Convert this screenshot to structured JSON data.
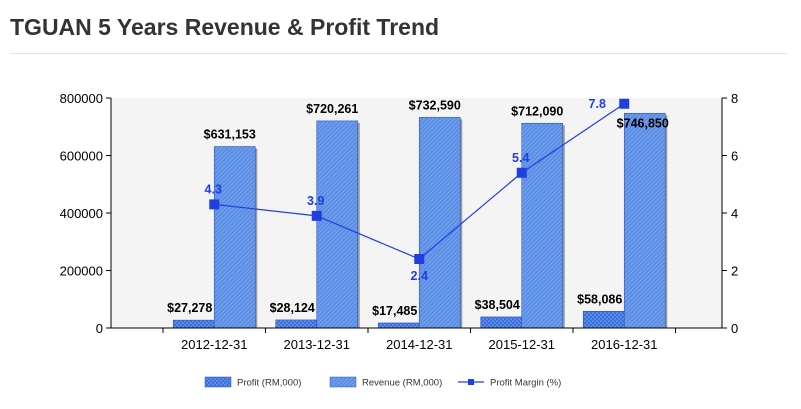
{
  "page": {
    "title": "TGUAN 5 Years Revenue & Profit Trend"
  },
  "chart_data": {
    "type": "bar",
    "categories": [
      "2012-12-31",
      "2013-12-31",
      "2014-12-31",
      "2015-12-31",
      "2016-12-31"
    ],
    "series": [
      {
        "name": "Profit (RM,000)",
        "type": "bar",
        "axis": "left",
        "values": [
          27278,
          28124,
          17485,
          38504,
          58086
        ],
        "labels": [
          "$27,278",
          "$28,124",
          "$17,485",
          "$38,504",
          "$58,086"
        ],
        "color": "#3a6fdc"
      },
      {
        "name": "Revenue (RM,000)",
        "type": "bar",
        "axis": "left",
        "values": [
          631153,
          720261,
          732590,
          712090,
          746850
        ],
        "labels": [
          "$631,153",
          "$720,261",
          "$732,590",
          "$712,090",
          "$746,850"
        ],
        "color": "#5b8fe6"
      },
      {
        "name": "Profit Margin (%)",
        "type": "line",
        "axis": "right",
        "values": [
          4.3,
          3.9,
          2.4,
          5.4,
          7.8
        ],
        "labels": [
          "4.3",
          "3.9",
          "2.4",
          "5.4",
          "7.8"
        ],
        "color": "#1f3fe0"
      }
    ],
    "y_left": {
      "range": [
        0,
        800000
      ],
      "ticks": [
        "0",
        "200000",
        "400000",
        "600000",
        "800000"
      ]
    },
    "y_right": {
      "range": [
        0,
        8
      ],
      "ticks": [
        "0",
        "2",
        "4",
        "6",
        "8"
      ]
    },
    "legend_position": "bottom-center",
    "grid": false
  }
}
